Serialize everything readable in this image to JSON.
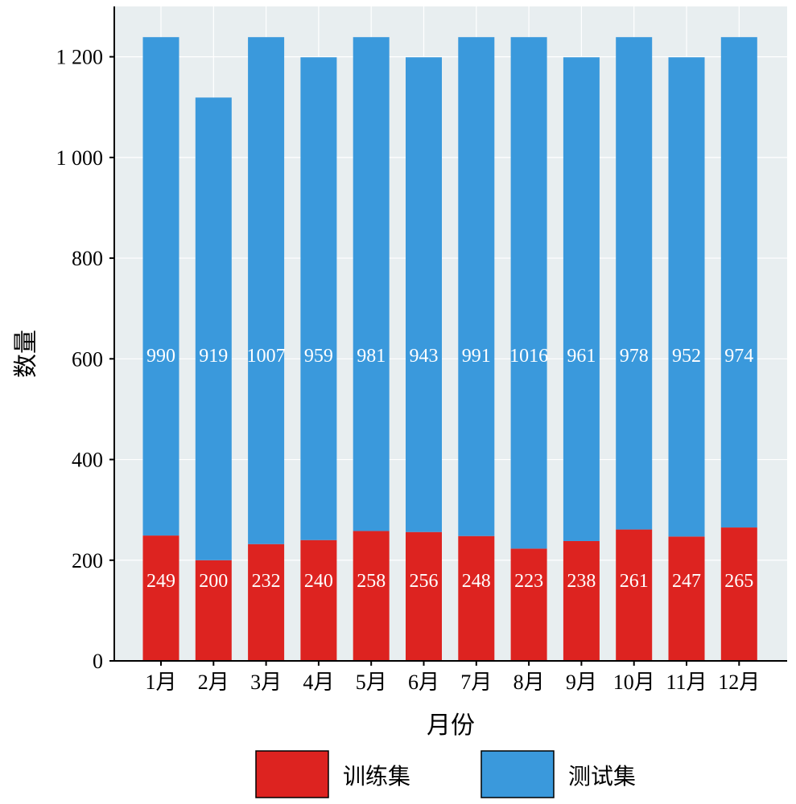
{
  "chart_data": {
    "type": "bar",
    "stacked": true,
    "categories": [
      "1月",
      "2月",
      "3月",
      "4月",
      "5月",
      "6月",
      "7月",
      "8月",
      "9月",
      "10月",
      "11月",
      "12月"
    ],
    "series": [
      {
        "name": "训练集",
        "color": "#dd2320",
        "values": [
          249,
          200,
          232,
          240,
          258,
          256,
          248,
          223,
          238,
          261,
          247,
          265
        ]
      },
      {
        "name": "测试集",
        "color": "#3a99dc",
        "values": [
          990,
          919,
          1007,
          959,
          981,
          943,
          991,
          1016,
          961,
          978,
          952,
          974
        ]
      }
    ],
    "xlabel": "月份",
    "ylabel": "数量",
    "ylim": [
      0,
      1300
    ],
    "yticks": [
      0,
      200,
      400,
      600,
      800,
      1000,
      1200
    ],
    "ytick_labels": [
      "0",
      "200",
      "400",
      "600",
      "800",
      "1 000",
      "1 200"
    ],
    "grid": true,
    "legend_position": "bottom",
    "background_color": "#e8eef0",
    "grid_color": "#ffffff"
  }
}
